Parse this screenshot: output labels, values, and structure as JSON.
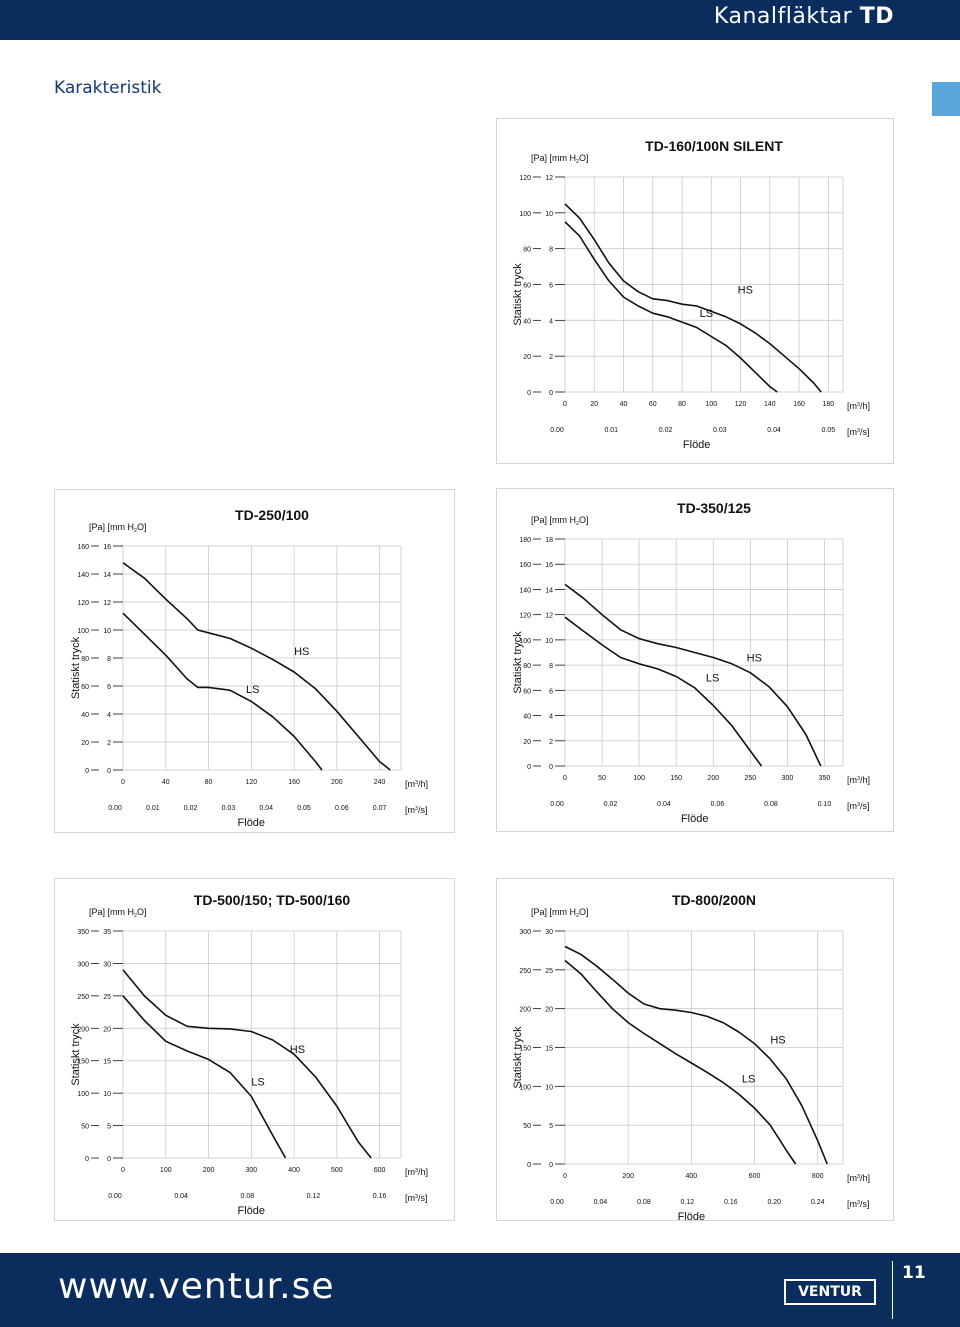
{
  "header": {
    "title_light": "Kanalfläktar",
    "title_bold": "TD",
    "section_title": "Karakteristik"
  },
  "footer": {
    "url": "www.ventur.se",
    "brand": "VENTUR",
    "page_number": "11"
  },
  "colors": {
    "bar": "#0b2d5e",
    "tab": "#5aa7db",
    "title_blue": "#103a78"
  },
  "chart_data": [
    {
      "type": "line",
      "title": "TD-160/100N SILENT",
      "ylabel": "Statiskt tryck",
      "xlabel": "Flöde",
      "y_unit_label": "[Pa] [mm H₂O]",
      "x_unit_top": "[m³/h]",
      "x_unit_bottom": "[m³/s]",
      "pa_ticks": [
        "0",
        "20",
        "40",
        "60",
        "80",
        "100",
        "120"
      ],
      "mm_ticks": [
        "0",
        "2",
        "4",
        "6",
        "8",
        "10",
        "12"
      ],
      "x_ticks": [
        "0",
        "20",
        "40",
        "60",
        "80",
        "100",
        "120",
        "140",
        "160",
        "180"
      ],
      "x2_ticks": [
        "0.00",
        "0.01",
        "0.02",
        "0.03",
        "0.04",
        "0.05"
      ],
      "xlim": [
        0,
        190
      ],
      "ylim": [
        0,
        120
      ],
      "grid": true,
      "series": [
        {
          "name": "HS",
          "x": [
            0,
            10,
            20,
            30,
            40,
            50,
            60,
            70,
            80,
            90,
            100,
            110,
            120,
            130,
            140,
            150,
            160,
            170,
            175
          ],
          "y": [
            105,
            97,
            85,
            72,
            62,
            56,
            52,
            51,
            49,
            48,
            45,
            42,
            38,
            33,
            27,
            20,
            13,
            5,
            0
          ]
        },
        {
          "name": "LS",
          "x": [
            0,
            10,
            20,
            30,
            40,
            50,
            60,
            70,
            80,
            90,
            100,
            110,
            120,
            130,
            140,
            145
          ],
          "y": [
            95,
            87,
            74,
            62,
            53,
            48,
            44,
            42,
            39,
            36,
            31,
            26,
            19,
            11,
            3,
            0
          ]
        }
      ],
      "labels": [
        {
          "text": "HS",
          "x": 118,
          "y": 55
        },
        {
          "text": "LS",
          "x": 92,
          "y": 42
        }
      ]
    },
    {
      "type": "line",
      "title": "TD-250/100",
      "ylabel": "Statiskt tryck",
      "xlabel": "Flöde",
      "y_unit_label": "[Pa] [mm H₂O]",
      "x_unit_top": "[m³/h]",
      "x_unit_bottom": "[m³/s]",
      "pa_ticks": [
        "0",
        "20",
        "40",
        "60",
        "80",
        "100",
        "120",
        "140",
        "160"
      ],
      "mm_ticks": [
        "0",
        "2",
        "4",
        "6",
        "8",
        "10",
        "12",
        "14",
        "16"
      ],
      "x_ticks": [
        "0",
        "40",
        "80",
        "120",
        "160",
        "200",
        "240"
      ],
      "x2_ticks": [
        "0.00",
        "0.01",
        "0.02",
        "0.03",
        "0.04",
        "0.05",
        "0.06",
        "0.07"
      ],
      "xlim": [
        0,
        260
      ],
      "ylim": [
        0,
        160
      ],
      "grid": true,
      "series": [
        {
          "name": "HS",
          "x": [
            0,
            20,
            40,
            60,
            70,
            80,
            100,
            120,
            140,
            160,
            180,
            200,
            220,
            240,
            250
          ],
          "y": [
            148,
            137,
            122,
            108,
            100,
            98,
            94,
            87,
            79,
            70,
            58,
            42,
            24,
            6,
            0
          ]
        },
        {
          "name": "LS",
          "x": [
            0,
            20,
            40,
            60,
            70,
            80,
            100,
            120,
            140,
            160,
            180,
            186
          ],
          "y": [
            112,
            97,
            82,
            65,
            59,
            59,
            57,
            49,
            38,
            24,
            6,
            0
          ]
        }
      ],
      "labels": [
        {
          "text": "HS",
          "x": 160,
          "y": 82
        },
        {
          "text": "LS",
          "x": 115,
          "y": 55
        }
      ]
    },
    {
      "type": "line",
      "title": "TD-350/125",
      "ylabel": "Statiskt tryck",
      "xlabel": "Flöde",
      "y_unit_label": "[Pa] [mm H₂O]",
      "x_unit_top": "[m³/h]",
      "x_unit_bottom": "[m³/s]",
      "pa_ticks": [
        "0",
        "20",
        "40",
        "60",
        "80",
        "100",
        "120",
        "140",
        "160",
        "180"
      ],
      "mm_ticks": [
        "0",
        "2",
        "4",
        "6",
        "8",
        "10",
        "12",
        "14",
        "16",
        "18"
      ],
      "x_ticks": [
        "0",
        "50",
        "100",
        "150",
        "200",
        "250",
        "300",
        "350"
      ],
      "x2_ticks": [
        "0.00",
        "0.02",
        "0.04",
        "0.06",
        "0.08",
        "0.10"
      ],
      "xlim": [
        0,
        375
      ],
      "ylim": [
        0,
        180
      ],
      "grid": true,
      "series": [
        {
          "name": "HS",
          "x": [
            0,
            25,
            50,
            75,
            100,
            125,
            150,
            175,
            200,
            225,
            250,
            275,
            300,
            325,
            345
          ],
          "y": [
            144,
            133,
            120,
            108,
            101,
            97,
            94,
            90,
            86,
            81,
            74,
            63,
            47,
            25,
            0
          ]
        },
        {
          "name": "LS",
          "x": [
            0,
            25,
            50,
            75,
            100,
            125,
            150,
            175,
            200,
            225,
            250,
            265
          ],
          "y": [
            118,
            107,
            96,
            86,
            81,
            77,
            71,
            62,
            48,
            32,
            12,
            0
          ]
        }
      ],
      "labels": [
        {
          "text": "HS",
          "x": 245,
          "y": 83
        },
        {
          "text": "LS",
          "x": 190,
          "y": 67
        }
      ]
    },
    {
      "type": "line",
      "title": "TD-500/150; TD-500/160",
      "ylabel": "Statiskt tryck",
      "xlabel": "Flöde",
      "y_unit_label": "[Pa] [mm H₂O]",
      "x_unit_top": "[m³/h]",
      "x_unit_bottom": "[m³/s]",
      "pa_ticks": [
        "0",
        "50",
        "100",
        "150",
        "200",
        "250",
        "300",
        "350"
      ],
      "mm_ticks": [
        "0",
        "5",
        "10",
        "15",
        "20",
        "25",
        "30",
        "35"
      ],
      "x_ticks": [
        "0",
        "100",
        "200",
        "300",
        "400",
        "500",
        "600"
      ],
      "x2_ticks": [
        "0.00",
        "0.04",
        "0.08",
        "0.12",
        "0.16"
      ],
      "xlim": [
        0,
        650
      ],
      "ylim": [
        0,
        350
      ],
      "grid": true,
      "series": [
        {
          "name": "HS",
          "x": [
            0,
            50,
            100,
            150,
            200,
            250,
            300,
            350,
            400,
            450,
            500,
            550,
            580
          ],
          "y": [
            290,
            250,
            220,
            203,
            200,
            199,
            195,
            182,
            160,
            125,
            80,
            25,
            0
          ]
        },
        {
          "name": "LS",
          "x": [
            0,
            50,
            100,
            150,
            200,
            250,
            300,
            350,
            380
          ],
          "y": [
            250,
            212,
            180,
            165,
            152,
            132,
            95,
            35,
            0
          ]
        }
      ],
      "labels": [
        {
          "text": "HS",
          "x": 390,
          "y": 162
        },
        {
          "text": "LS",
          "x": 300,
          "y": 112
        }
      ]
    },
    {
      "type": "line",
      "title": "TD-800/200N",
      "ylabel": "Statiskt tryck",
      "xlabel": "Flöde",
      "y_unit_label": "[Pa] [mm H₂O]",
      "x_unit_top": "[m³/h]",
      "x_unit_bottom": "[m³/s]",
      "pa_ticks": [
        "0",
        "50",
        "100",
        "150",
        "200",
        "250",
        "300"
      ],
      "mm_ticks": [
        "0",
        "5",
        "10",
        "15",
        "20",
        "25",
        "30"
      ],
      "x_ticks": [
        "0",
        "200",
        "400",
        "600",
        "800"
      ],
      "x2_ticks": [
        "0.00",
        "0.04",
        "0.08",
        "0.12",
        "0.16",
        "0.20",
        "0.24"
      ],
      "xlim": [
        0,
        880
      ],
      "ylim": [
        0,
        300
      ],
      "grid": true,
      "series": [
        {
          "name": "HS",
          "x": [
            0,
            50,
            100,
            150,
            200,
            250,
            300,
            350,
            400,
            450,
            500,
            550,
            600,
            650,
            700,
            750,
            800,
            830
          ],
          "y": [
            280,
            270,
            255,
            238,
            220,
            206,
            200,
            198,
            195,
            190,
            182,
            170,
            155,
            135,
            110,
            75,
            30,
            0
          ]
        },
        {
          "name": "LS",
          "x": [
            0,
            50,
            100,
            150,
            200,
            250,
            300,
            350,
            400,
            450,
            500,
            550,
            600,
            650,
            700,
            730
          ],
          "y": [
            262,
            245,
            222,
            200,
            182,
            168,
            155,
            142,
            130,
            118,
            105,
            90,
            72,
            50,
            18,
            0
          ]
        }
      ],
      "labels": [
        {
          "text": "HS",
          "x": 650,
          "y": 155
        },
        {
          "text": "LS",
          "x": 560,
          "y": 105
        }
      ]
    }
  ]
}
